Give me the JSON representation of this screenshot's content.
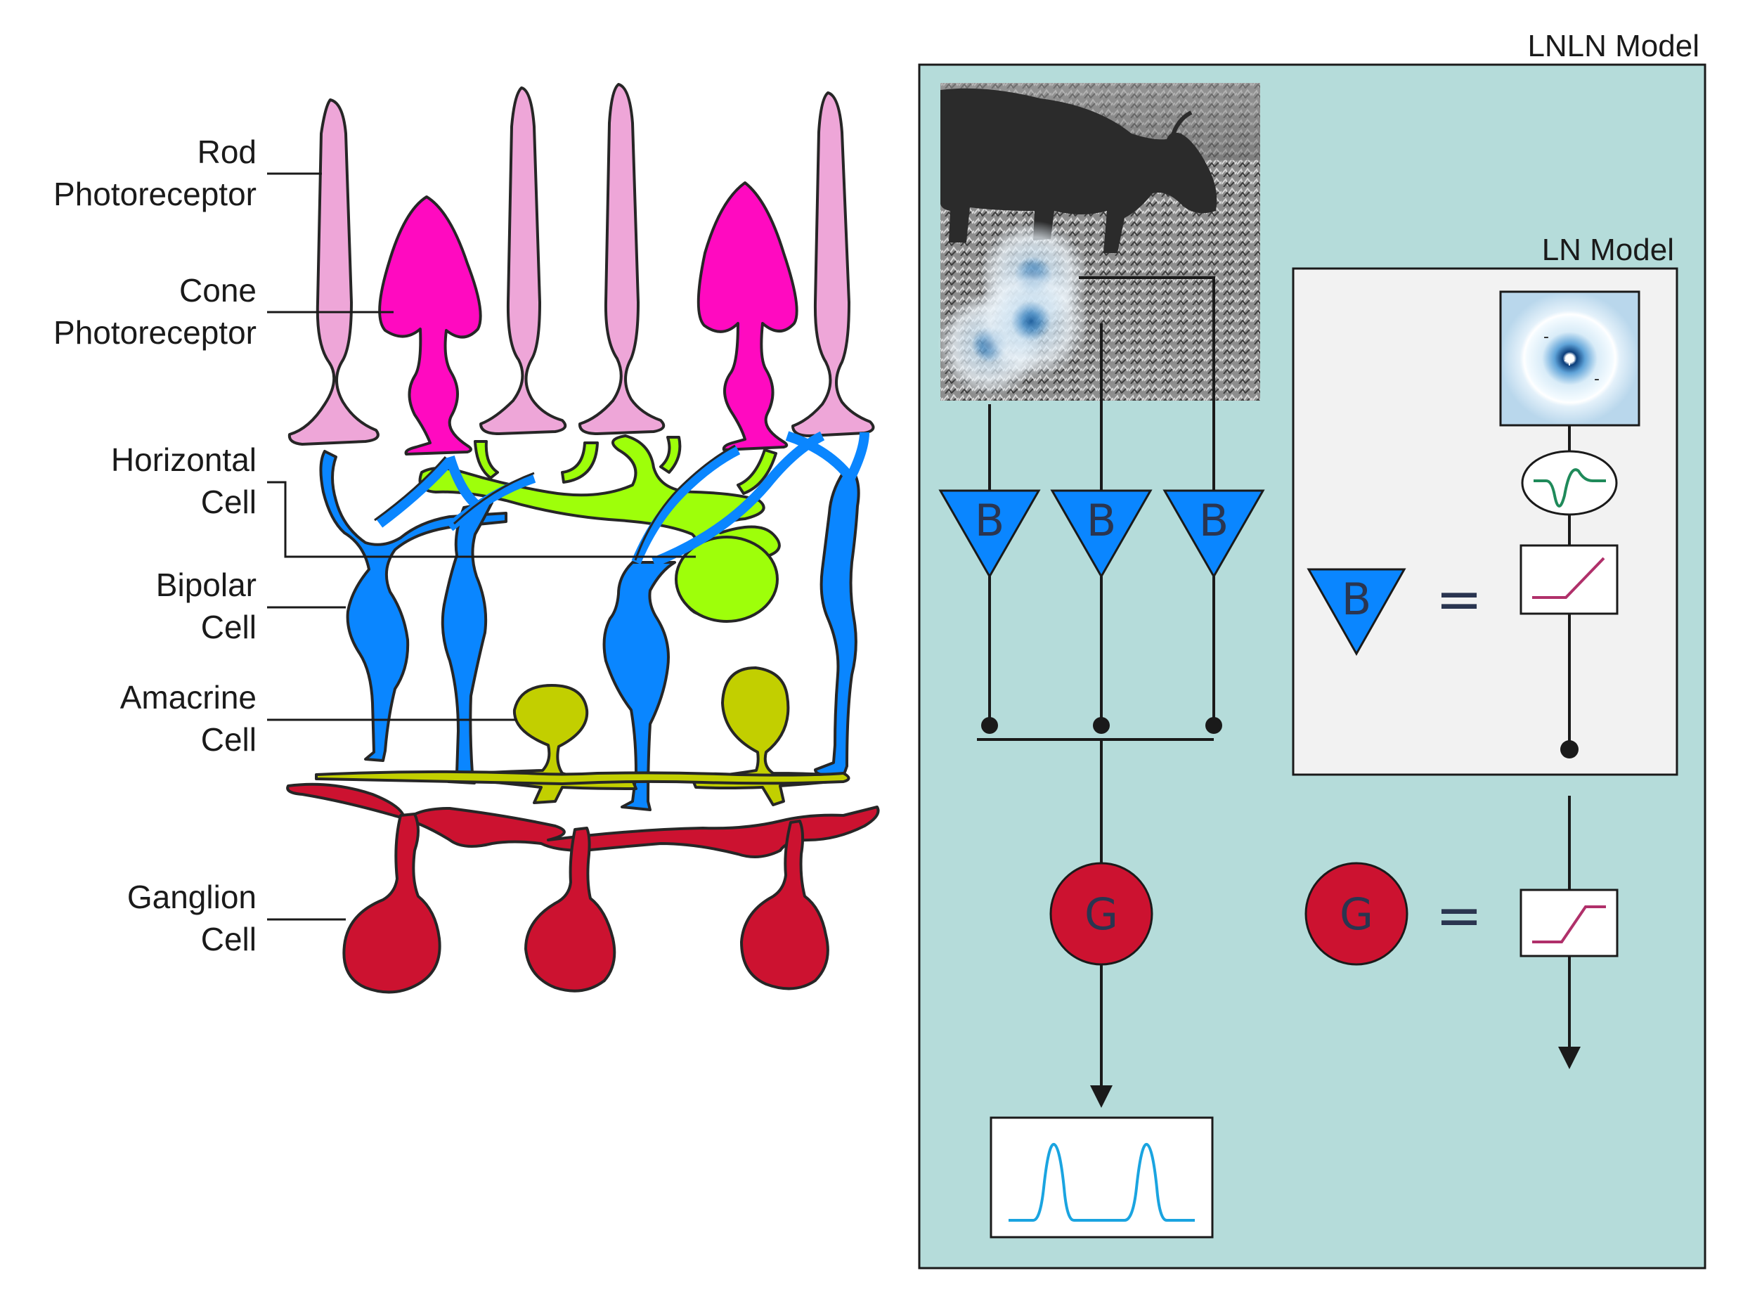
{
  "retina": {
    "labels": {
      "rod": [
        "Rod",
        "Photoreceptor"
      ],
      "cone": [
        "Cone",
        "Photoreceptor"
      ],
      "horizontal": [
        "Horizontal",
        "Cell"
      ],
      "bipolar": [
        "Bipolar",
        "Cell"
      ],
      "amacrine": [
        "Amacrine",
        "Cell"
      ],
      "ganglion": [
        "Ganglion",
        "Cell"
      ]
    },
    "colors": {
      "rod": "#eea6d8",
      "cone": "#ff0ac0",
      "horizontal": "#9eff0a",
      "bipolar": "#0a86ff",
      "amacrine": "#c2cf00",
      "ganglion": "#cc1230"
    }
  },
  "lnln": {
    "title": "LNLN Model",
    "bipolar_letter": "B",
    "ganglion_letter": "G",
    "panel_color": "#b5dcda"
  },
  "ln": {
    "title": "LN Model",
    "bipolar_letter": "B",
    "ganglion_letter": "G",
    "equals": "=",
    "rf_plus": "+",
    "rf_minus": "-"
  }
}
